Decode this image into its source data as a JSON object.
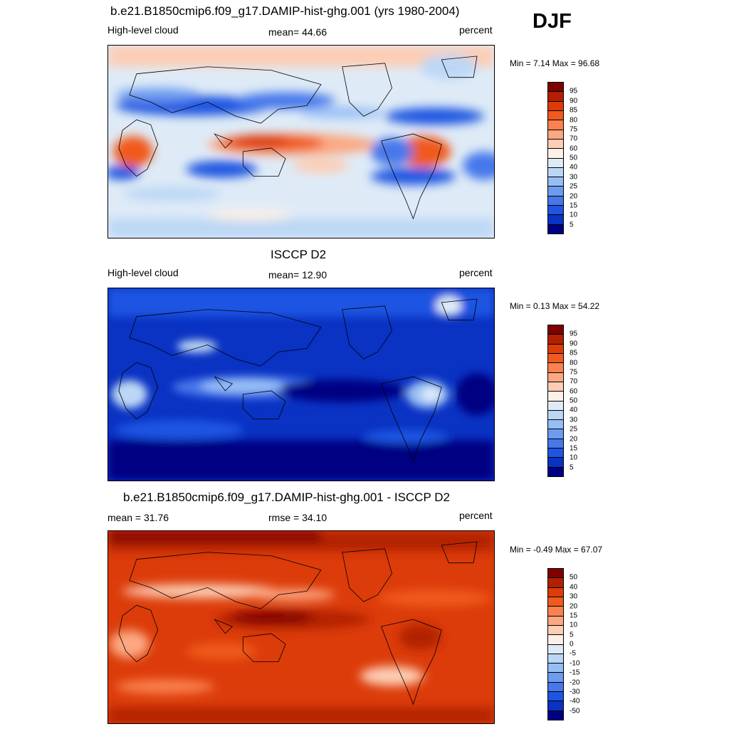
{
  "season": "DJF",
  "panels": [
    {
      "title": "b.e21.B1850cmip6.f09_g17.DAMIP-hist-ghg.001 (yrs 1980-2004)",
      "left_label": "High-level cloud",
      "center_label": "mean=  44.66",
      "right_label": "percent",
      "minmax": "Min =   7.14 Max =  96.68",
      "colorbar": {
        "colors": [
          "#7f0000",
          "#b22000",
          "#dc3c0a",
          "#f05a1e",
          "#fa8250",
          "#fca882",
          "#fdcdb4",
          "#fdf0e6",
          "#deebf7",
          "#bcd7f5",
          "#96bef5",
          "#6e9bf0",
          "#4678eb",
          "#1e55e1",
          "#0a32c3",
          "#000082"
        ],
        "ticks": [
          "95",
          "90",
          "85",
          "80",
          "75",
          "70",
          "60",
          "50",
          "40",
          "30",
          "25",
          "20",
          "15",
          "10",
          "5"
        ]
      }
    },
    {
      "title": "ISCCP D2",
      "left_label": "High-level cloud",
      "center_label": "mean=  12.90",
      "right_label": "percent",
      "minmax": "Min =   0.13 Max =  54.22",
      "colorbar": {
        "colors": [
          "#7f0000",
          "#b22000",
          "#dc3c0a",
          "#f05a1e",
          "#fa8250",
          "#fca882",
          "#fdcdb4",
          "#fdf0e6",
          "#deebf7",
          "#bcd7f5",
          "#96bef5",
          "#6e9bf0",
          "#4678eb",
          "#1e55e1",
          "#0a32c3",
          "#000082"
        ],
        "ticks": [
          "95",
          "90",
          "85",
          "80",
          "75",
          "70",
          "60",
          "50",
          "40",
          "30",
          "25",
          "20",
          "15",
          "10",
          "5"
        ]
      }
    },
    {
      "title": "b.e21.B1850cmip6.f09_g17.DAMIP-hist-ghg.001 - ISCCP D2",
      "left_label": "mean =  31.76",
      "center_label": "rmse =  34.10",
      "right_label": "percent",
      "minmax": "Min =  -0.49 Max =  67.07",
      "colorbar": {
        "colors": [
          "#7f0000",
          "#b22000",
          "#dc3c0a",
          "#f05a1e",
          "#fa8250",
          "#fca882",
          "#fdcdb4",
          "#fdf0e6",
          "#deebf7",
          "#bcd7f5",
          "#96bef5",
          "#6e9bf0",
          "#4678eb",
          "#1e55e1",
          "#0a32c3",
          "#000082"
        ],
        "ticks": [
          "50",
          "40",
          "30",
          "20",
          "15",
          "10",
          "5",
          "0",
          "-5",
          "-10",
          "-15",
          "-20",
          "-30",
          "-40",
          "-50"
        ]
      }
    }
  ]
}
